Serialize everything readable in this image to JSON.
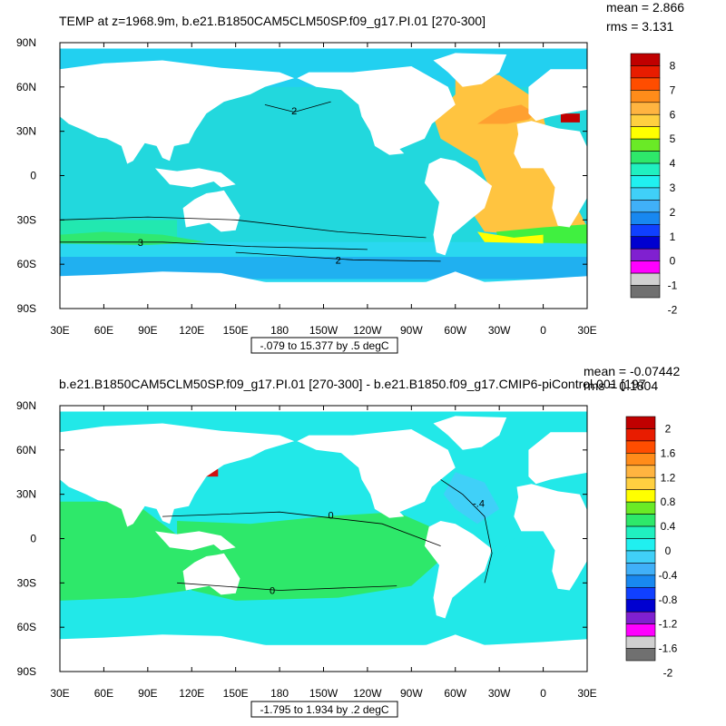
{
  "chart_data": [
    {
      "type": "heatmap",
      "title": "TEMP at z=1968.9m, b.e21.B1850CAM5CLM50SP.f09_g17.PI.01 [270-300]",
      "stats": {
        "mean": "mean = 2.866",
        "rms": "rms = 3.131"
      },
      "contour_info": "-.079 to 15.377 by .5 degC",
      "x_ticks": [
        "30E",
        "60E",
        "90E",
        "120E",
        "150E",
        "180",
        "150W",
        "120W",
        "90W",
        "60W",
        "30W",
        "0",
        "30E"
      ],
      "y_ticks": [
        "90N",
        "60N",
        "30N",
        "0",
        "30S",
        "60S",
        "90S"
      ],
      "xlim": [
        30,
        390
      ],
      "ylim": [
        -90,
        90
      ],
      "contour_labels": [
        "2",
        "3",
        "2"
      ],
      "colorbar": {
        "labels": [
          "8",
          "7",
          "6",
          "5",
          "4",
          "3",
          "2",
          "1",
          "0",
          "-1",
          "-2"
        ],
        "colors": [
          "#c00000",
          "#e81c00",
          "#ff4d00",
          "#ff8c1a",
          "#ffb440",
          "#ffd040",
          "#ffff00",
          "#6aea26",
          "#2ee86a",
          "#20f0c0",
          "#20f0f0",
          "#40d0f8",
          "#40b0f8",
          "#1888f0",
          "#1040ff",
          "#0000d0",
          "#8020d0",
          "#ff00ff",
          "#d0d0d0",
          "#707070"
        ]
      },
      "regions": {
        "arctic": "#22d0f0",
        "pacific": "#22d8dd",
        "west_pacific_band": "#22e8b0",
        "southern_ocean": "#2ad8f0",
        "southern_deep": "#20b0f0",
        "atlantic": "#ffc440",
        "atlantic_warm": "#ffa030",
        "med": "#c00000",
        "south_atlantic_green": "#40f040",
        "south_atlantic_yellow": "#ffff00"
      }
    },
    {
      "type": "heatmap",
      "title": "b.e21.B1850CAM5CLM50SP.f09_g17.PI.01 [270-300] - b.e21.B1850.f09_g17.CMIP6-piControl.001 [197",
      "stats": {
        "mean": "mean = -0.07442",
        "rms": "rms = 0.1804"
      },
      "contour_info": "-1.795 to 1.934 by .2 degC",
      "x_ticks": [
        "30E",
        "60E",
        "90E",
        "120E",
        "150E",
        "180",
        "150W",
        "120W",
        "90W",
        "60W",
        "30W",
        "0",
        "30E"
      ],
      "y_ticks": [
        "90N",
        "60N",
        "30N",
        "0",
        "30S",
        "60S",
        "90S"
      ],
      "xlim": [
        30,
        390
      ],
      "ylim": [
        -90,
        90
      ],
      "contour_labels": [
        "0",
        "0",
        "-.4"
      ],
      "colorbar": {
        "labels": [
          "2",
          "1.6",
          "1.2",
          "0.8",
          "0.4",
          "0",
          "-0.4",
          "-0.8",
          "-1.2",
          "-1.6",
          "-2"
        ],
        "colors": [
          "#c00000",
          "#e81c00",
          "#ff4d00",
          "#ff8c1a",
          "#ffb440",
          "#ffd040",
          "#ffff00",
          "#6aea26",
          "#2ee86a",
          "#20f0c0",
          "#20f0f0",
          "#40d0f8",
          "#40b0f8",
          "#1888f0",
          "#1040ff",
          "#0000d0",
          "#8020d0",
          "#ff00ff",
          "#d0d0d0",
          "#707070"
        ]
      },
      "regions": {
        "arctic": "#22e8e8",
        "pacific_north": "#22e8e8",
        "pacific_band": "#2ee86a",
        "indian": "#2ee86a",
        "southern": "#22e8e8",
        "atlantic": "#22e8e8",
        "atlantic_cool": "#40d0f8",
        "south_atlantic": "#22e8e8"
      }
    }
  ]
}
